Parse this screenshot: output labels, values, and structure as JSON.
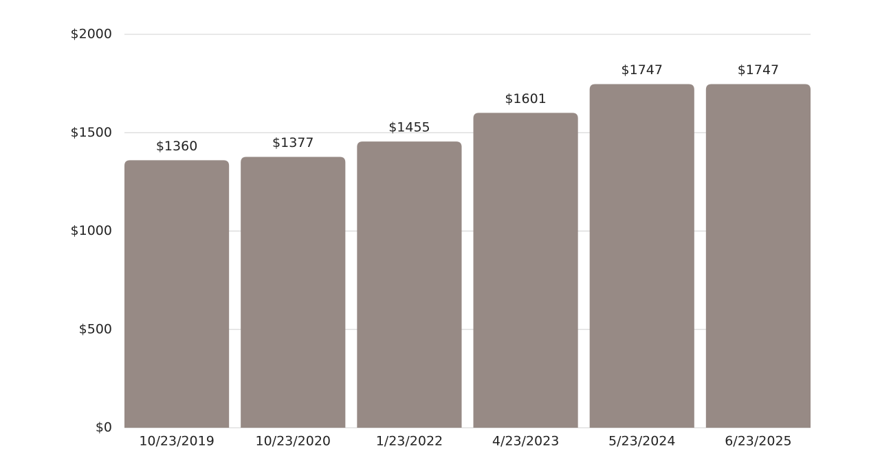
{
  "chart_data": {
    "type": "bar",
    "categories": [
      "10/23/2019",
      "10/23/2020",
      "1/23/2022",
      "4/23/2023",
      "5/23/2024",
      "6/23/2025"
    ],
    "values": [
      1360,
      1377,
      1455,
      1601,
      1747,
      1747
    ],
    "value_labels": [
      "$1360",
      "$1377",
      "$1455",
      "$1601",
      "$1747",
      "$1747"
    ],
    "color": "#978a85",
    "ylim": [
      0,
      2000
    ],
    "yticks": [
      {
        "value": 0,
        "label": "$0"
      },
      {
        "value": 500,
        "label": "$500"
      },
      {
        "value": 1000,
        "label": "$1000"
      },
      {
        "value": 1500,
        "label": "$1500"
      },
      {
        "value": 2000,
        "label": "$2000"
      }
    ],
    "grid": true
  }
}
